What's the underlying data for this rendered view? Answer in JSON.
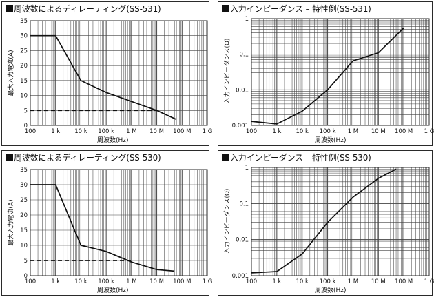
{
  "colors": {
    "line": "#111111",
    "grid": "#444444",
    "frame": "#2a2a2a"
  },
  "x_tick_labels": [
    "100",
    "1 k",
    "10 k",
    "100 k",
    "1 M",
    "10 M",
    "100 M",
    "1 G"
  ],
  "chart_data": [
    {
      "type": "line",
      "title": "周波数によるディレーティング(SS-531)",
      "xlabel": "周波数(Hz)",
      "ylabel": "最大入力電流(A)",
      "xscale": "log",
      "xlim": [
        100,
        1000000000
      ],
      "ylim": [
        0,
        35
      ],
      "yticks": [
        0,
        5,
        10,
        15,
        20,
        25,
        30,
        35
      ],
      "grid": true,
      "series": [
        {
          "style": "solid",
          "x": [
            100,
            1000,
            10000,
            100000,
            1000000,
            10000000,
            60000000
          ],
          "y": [
            30,
            30,
            15,
            11,
            8,
            5,
            2
          ]
        },
        {
          "style": "dashed",
          "x": [
            100,
            10000000
          ],
          "y": [
            5,
            5
          ]
        }
      ]
    },
    {
      "type": "line",
      "title": "入力インピーダンス – 特性例(SS-531)",
      "xlabel": "周波数(Hz)",
      "ylabel": "入力インピーダンス(Ω)",
      "xscale": "log",
      "xlim": [
        100,
        1000000000
      ],
      "yscale": "log",
      "ylim": [
        0.001,
        1
      ],
      "ytick_labels": [
        "0.001",
        "0.01",
        "0.1",
        "1"
      ],
      "grid": true,
      "series": [
        {
          "style": "solid",
          "x": [
            100,
            1000,
            10000,
            100000,
            1000000,
            10000000,
            100000000
          ],
          "y": [
            0.0013,
            0.0011,
            0.0025,
            0.01,
            0.065,
            0.11,
            0.55
          ]
        }
      ]
    },
    {
      "type": "line",
      "title": "周波数によるディレーティング(SS-530)",
      "xlabel": "周波数(Hz)",
      "ylabel": "最大入力電流(A)",
      "xscale": "log",
      "xlim": [
        100,
        1000000000
      ],
      "ylim": [
        0,
        35
      ],
      "yticks": [
        0,
        5,
        10,
        15,
        20,
        25,
        30,
        35
      ],
      "grid": true,
      "series": [
        {
          "style": "solid",
          "x": [
            100,
            1000,
            10000,
            100000,
            1000000,
            10000000,
            50000000
          ],
          "y": [
            30,
            30,
            10,
            8,
            4.5,
            2,
            1.5
          ]
        },
        {
          "style": "dashed",
          "x": [
            100,
            1000000
          ],
          "y": [
            5,
            5
          ]
        }
      ]
    },
    {
      "type": "line",
      "title": "入力インピーダンス – 特性例(SS-530)",
      "xlabel": "周波数(Hz)",
      "ylabel": "入力インピーダンス(Ω)",
      "xscale": "log",
      "xlim": [
        100,
        1000000000
      ],
      "yscale": "log",
      "ylim": [
        0.001,
        1
      ],
      "ytick_labels": [
        "0.001",
        "0.01",
        "0.1",
        "1"
      ],
      "grid": true,
      "series": [
        {
          "style": "solid",
          "x": [
            100,
            1000,
            10000,
            100000,
            1000000,
            10000000,
            50000000
          ],
          "y": [
            0.0012,
            0.0013,
            0.004,
            0.03,
            0.15,
            0.5,
            0.9
          ]
        }
      ]
    }
  ]
}
